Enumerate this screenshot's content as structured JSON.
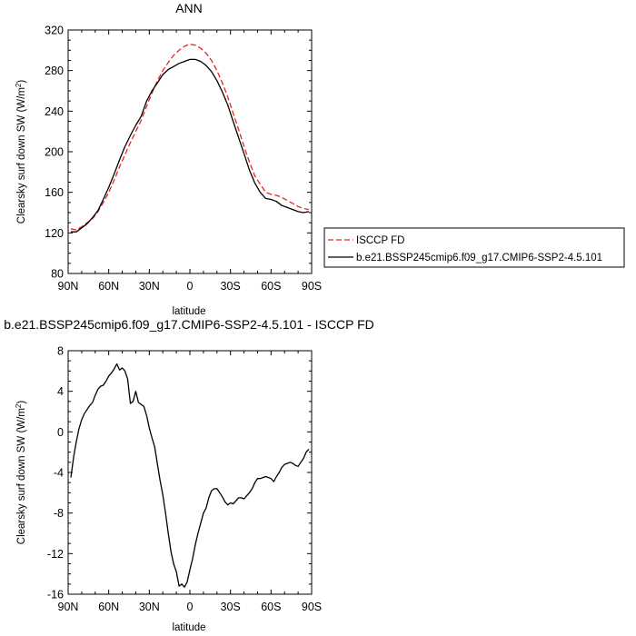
{
  "chart_data": [
    {
      "type": "line",
      "title": "ANN",
      "xlabel": "latitude",
      "ylabel": "Clearsky surf down SW (W/m",
      "ylabel_sup": "2",
      "ylabel_close": ")",
      "xlim": [
        90,
        -90
      ],
      "ylim": [
        80,
        320
      ],
      "x_ticks": [
        90,
        60,
        30,
        0,
        -30,
        -60,
        -90
      ],
      "x_tick_labels": [
        "90N",
        "60N",
        "30N",
        "0",
        "30S",
        "60S",
        "90S"
      ],
      "y_ticks": [
        80,
        120,
        160,
        200,
        240,
        280,
        320
      ],
      "y_tick_labels": [
        "80",
        "120",
        "160",
        "200",
        "240",
        "280",
        "320"
      ],
      "legend": "right",
      "series": [
        {
          "name": "ISCCP FD",
          "color": "#e8231f",
          "dash": "dashed",
          "x": [
            88,
            84,
            80,
            76,
            72,
            68,
            64,
            60,
            56,
            52,
            48,
            44,
            40,
            36,
            32,
            28,
            24,
            20,
            16,
            12,
            8,
            4,
            0,
            -4,
            -8,
            -12,
            -16,
            -20,
            -24,
            -28,
            -32,
            -36,
            -40,
            -44,
            -48,
            -52,
            -56,
            -60,
            -64,
            -68,
            -72,
            -76,
            -80,
            -84,
            -88
          ],
          "values": [
            124,
            123,
            126,
            130,
            134,
            141,
            150,
            160,
            172,
            185,
            197,
            209,
            220,
            231,
            245,
            258,
            270,
            280,
            288,
            295,
            300,
            304,
            306,
            305,
            302,
            297,
            290,
            280,
            268,
            254,
            238,
            222,
            205,
            190,
            176,
            168,
            160,
            158,
            157,
            155,
            152,
            149,
            146,
            144,
            143
          ]
        },
        {
          "name": "b.e21.BSSP245cmip6.f09_g17.CMIP6-SSP2-4.5.101",
          "color": "#000000",
          "dash": "solid",
          "x": [
            88,
            84,
            80,
            76,
            72,
            68,
            64,
            60,
            56,
            52,
            48,
            44,
            40,
            36,
            32,
            28,
            24,
            20,
            16,
            12,
            8,
            4,
            0,
            -4,
            -8,
            -12,
            -16,
            -20,
            -24,
            -28,
            -32,
            -36,
            -40,
            -44,
            -48,
            -52,
            -56,
            -60,
            -64,
            -68,
            -72,
            -76,
            -80,
            -84,
            -88
          ],
          "values": [
            121,
            121,
            125,
            129,
            135,
            142,
            153,
            165,
            178,
            192,
            205,
            216,
            226,
            235,
            250,
            260,
            268,
            276,
            281,
            284,
            287,
            289,
            291,
            291,
            289,
            285,
            279,
            270,
            259,
            246,
            230,
            214,
            198,
            182,
            169,
            160,
            154,
            153,
            151,
            147,
            145,
            143,
            141,
            140,
            141
          ]
        }
      ]
    },
    {
      "type": "line",
      "title": "b.e21.BSSP245cmip6.f09_g17.CMIP6-SSP2-4.5.101 - ISCCP FD",
      "xlabel": "latitude",
      "ylabel": "Clearsky surf down SW (W/m",
      "ylabel_sup": "2",
      "ylabel_close": ")",
      "xlim": [
        90,
        -90
      ],
      "ylim": [
        -16,
        8
      ],
      "x_ticks": [
        90,
        60,
        30,
        0,
        -30,
        -60,
        -90
      ],
      "x_tick_labels": [
        "90N",
        "60N",
        "30N",
        "0",
        "30S",
        "60S",
        "90S"
      ],
      "y_ticks": [
        -16,
        -12,
        -8,
        -4,
        0,
        4,
        8
      ],
      "y_tick_labels": [
        "-16",
        "-12",
        "-8",
        "-4",
        "0",
        "4",
        "8"
      ],
      "series": [
        {
          "color": "#000000",
          "dash": "solid",
          "x": [
            88,
            86,
            84,
            82,
            80,
            78,
            76,
            74,
            72,
            70,
            68,
            66,
            64,
            62,
            60,
            58,
            56,
            54,
            52,
            50,
            48,
            46,
            44,
            42,
            40,
            38,
            36,
            34,
            32,
            30,
            28,
            26,
            24,
            22,
            20,
            18,
            16,
            14,
            12,
            10,
            8,
            6,
            4,
            2,
            0,
            -2,
            -4,
            -6,
            -8,
            -10,
            -12,
            -14,
            -16,
            -18,
            -20,
            -22,
            -24,
            -26,
            -28,
            -30,
            -32,
            -34,
            -36,
            -38,
            -40,
            -42,
            -44,
            -46,
            -48,
            -50,
            -52,
            -54,
            -56,
            -58,
            -60,
            -62,
            -64,
            -66,
            -68,
            -70,
            -72,
            -74,
            -76,
            -78,
            -80,
            -82,
            -84,
            -86,
            -88
          ],
          "values": [
            -4.5,
            -2.5,
            -1.0,
            0.3,
            1.2,
            1.8,
            2.2,
            2.6,
            2.9,
            3.6,
            4.2,
            4.5,
            4.6,
            5.0,
            5.5,
            5.8,
            6.2,
            6.7,
            6.1,
            6.3,
            6.0,
            5.2,
            2.8,
            3.0,
            4.0,
            2.9,
            2.7,
            2.5,
            1.6,
            0.4,
            -0.6,
            -1.5,
            -3.2,
            -4.8,
            -6.2,
            -8.0,
            -10.0,
            -11.8,
            -13.0,
            -13.8,
            -15.2,
            -15.0,
            -15.3,
            -14.8,
            -13.6,
            -12.5,
            -11.1,
            -10.0,
            -9.0,
            -8.0,
            -7.5,
            -6.5,
            -5.8,
            -5.6,
            -5.6,
            -6.0,
            -6.4,
            -6.9,
            -7.2,
            -7.0,
            -7.1,
            -6.8,
            -6.5,
            -6.5,
            -6.6,
            -6.3,
            -6.0,
            -5.6,
            -5.0,
            -4.6,
            -4.6,
            -4.5,
            -4.4,
            -4.5,
            -4.6,
            -4.9,
            -4.4,
            -4.0,
            -3.5,
            -3.2,
            -3.1,
            -3.0,
            -3.1,
            -3.3,
            -3.4,
            -3.0,
            -2.6,
            -2.0,
            -1.7
          ]
        }
      ]
    }
  ]
}
